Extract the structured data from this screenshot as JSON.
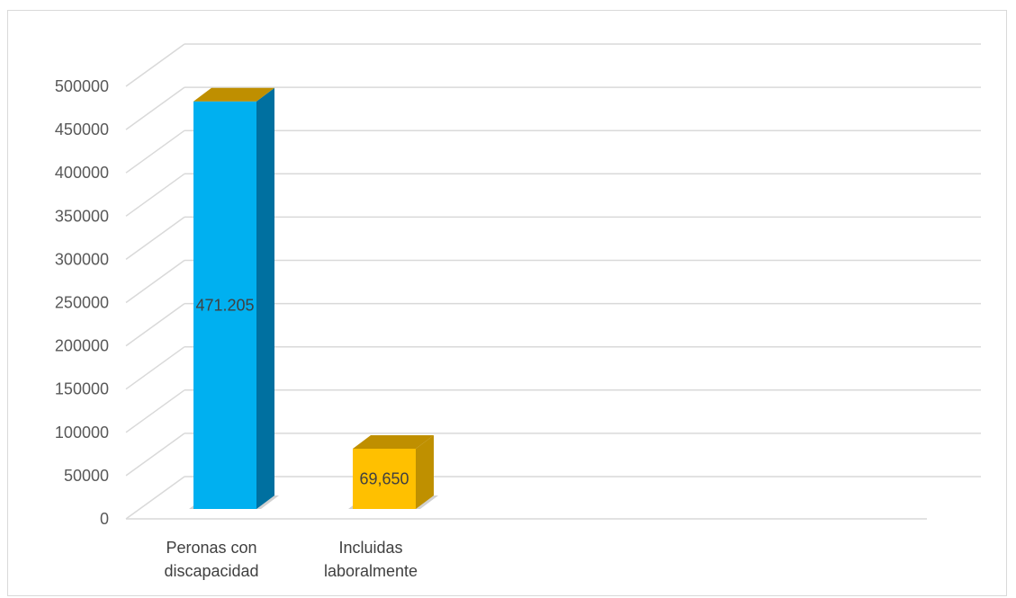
{
  "chart_data": {
    "type": "bar",
    "style": "3d-column",
    "categories": [
      "Peronas con discapacidad",
      "Incluidas laboralmente"
    ],
    "category_lines": [
      [
        "Peronas con",
        "discapacidad"
      ],
      [
        "Incluidas",
        "laboralmente"
      ]
    ],
    "values": [
      471205,
      69650
    ],
    "data_labels": [
      "471.205",
      "69,650"
    ],
    "yticks": [
      "0",
      "50000",
      "100000",
      "150000",
      "200000",
      "250000",
      "300000",
      "350000",
      "400000",
      "450000",
      "500000"
    ],
    "ylim": [
      0,
      500000
    ],
    "grid": true,
    "colors": {
      "bar1_front": "#00b0f0",
      "bar1_side": "#0070a0",
      "bar1_top": "#bf8f00",
      "bar2_front": "#ffc000",
      "bar2_side": "#bf9000",
      "bar2_top": "#bf8f00",
      "grid": "#d9d9d9"
    }
  }
}
